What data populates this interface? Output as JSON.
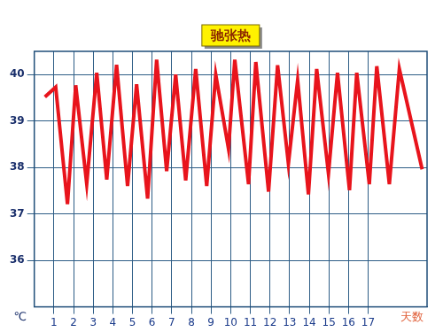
{
  "chart_data": {
    "type": "line",
    "title": "驰张热",
    "x_label": "天数",
    "y_label": "℃",
    "x": [
      0.54,
      1.09,
      1.69,
      2.11,
      2.67,
      3.18,
      3.69,
      4.19,
      4.75,
      5.21,
      5.77,
      6.23,
      6.74,
      7.2,
      7.71,
      8.22,
      8.78,
      9.24,
      9.89,
      10.21,
      10.91,
      11.28,
      11.93,
      12.39,
      12.94,
      13.41,
      13.96,
      14.38,
      14.98,
      15.44,
      16.05,
      16.42,
      17.06,
      17.44,
      18.08,
      18.59,
      19.75
    ],
    "values": [
      39.52,
      39.73,
      37.21,
      39.77,
      37.65,
      40.04,
      37.74,
      40.21,
      37.6,
      39.79,
      37.33,
      40.32,
      37.92,
      40.0,
      37.72,
      40.12,
      37.6,
      40.0,
      38.4,
      40.32,
      37.64,
      40.27,
      37.48,
      40.2,
      38.08,
      39.88,
      37.42,
      40.12,
      37.87,
      40.04,
      37.51,
      40.04,
      37.64,
      40.18,
      37.64,
      40.12,
      37.96
    ],
    "xlim": [
      0,
      20
    ],
    "xticks": [
      1,
      2,
      3,
      4,
      5,
      6,
      7,
      8,
      9,
      10,
      11,
      12,
      13,
      14,
      15,
      16,
      17
    ],
    "ylim": [
      35,
      40.5
    ],
    "yticks": [
      36,
      37,
      38,
      39,
      40
    ],
    "grid": true,
    "color": "#e8141c"
  }
}
